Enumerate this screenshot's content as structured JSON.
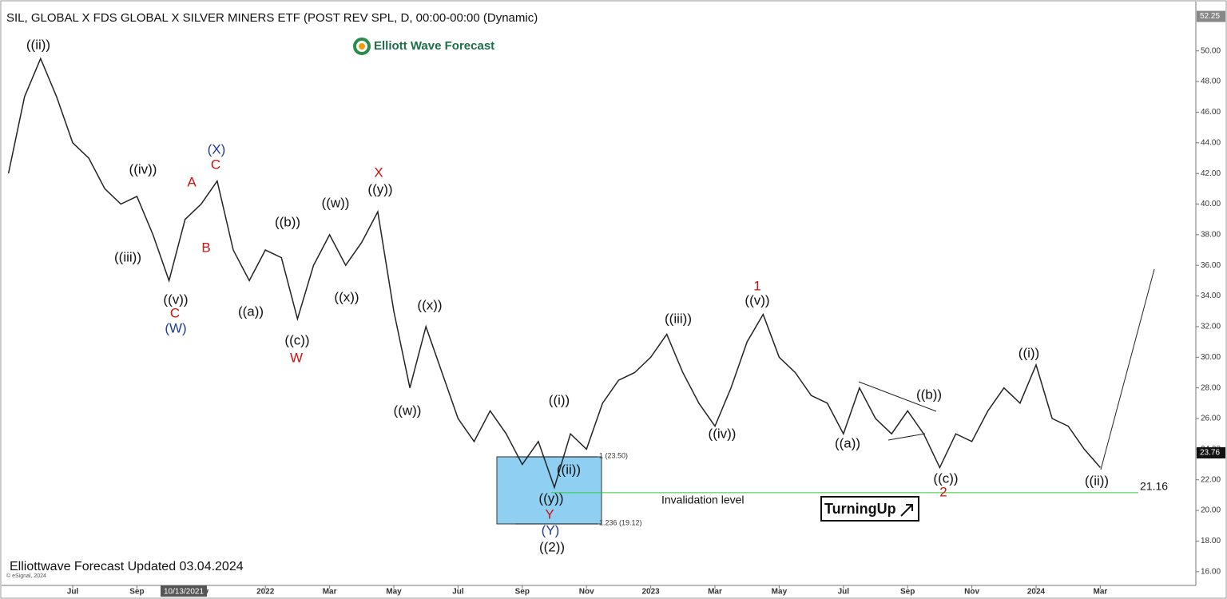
{
  "chart_data": {
    "type": "line",
    "title": "SIL, GLOBAL X FDS GLOBAL X SILVER MINERS ETF (POST REV SPL, D, 00:00-00:00 (Dynamic)",
    "logo": "Elliott Wave Forecast",
    "footer": "Elliottwave Forecast Updated 03.04.2024",
    "copyright": "© eSignal, 2024",
    "cursor_date": "10/13/2021",
    "badge": "TurningUp",
    "categories": [
      null,
      null,
      null,
      null,
      "Jul",
      null,
      null,
      null,
      "Sep",
      null,
      null,
      null,
      "Nov",
      null,
      null,
      null,
      "2022",
      null,
      null,
      null,
      "Mar",
      null,
      null,
      null,
      "May",
      null,
      null,
      null,
      "Jul",
      null,
      null,
      null,
      "Sep",
      null,
      null,
      null,
      "Nov",
      null,
      null,
      null,
      "2023",
      null,
      null,
      null,
      "Mar",
      null,
      null,
      null,
      "May",
      null,
      null,
      null,
      "Jul",
      null,
      null,
      null,
      "Sep",
      null,
      null,
      null,
      "Nov",
      null,
      null,
      null,
      "2024",
      null,
      null,
      null,
      "Mar"
    ],
    "values": [
      42,
      47,
      49.5,
      47,
      44,
      43,
      41,
      40,
      40.5,
      38,
      35,
      39,
      40,
      41.5,
      37,
      35,
      37,
      36.5,
      32.5,
      36,
      38,
      36,
      37.5,
      39.5,
      33,
      28,
      32,
      29,
      26,
      24.5,
      26.5,
      25,
      23,
      24.5,
      21.5,
      25,
      24,
      27,
      28.5,
      29,
      30,
      31.5,
      29,
      27,
      25.5,
      28,
      31,
      32.8,
      30,
      29,
      27.5,
      27,
      25,
      28,
      26,
      25,
      26.5,
      25,
      22.8,
      25,
      24.5,
      26.5,
      28,
      27,
      29.5,
      26,
      25.5,
      24,
      22.8
    ],
    "color": "#222222",
    "ylim": [
      15,
      52.8
    ],
    "yticks": [
      {
        "value": 16,
        "label": "16.00"
      },
      {
        "value": 18,
        "label": "18.00"
      },
      {
        "value": 20,
        "label": "20.00"
      },
      {
        "value": 22,
        "label": "22.00"
      },
      {
        "value": 24,
        "label": "24.00"
      },
      {
        "value": 26,
        "label": "26.00"
      },
      {
        "value": 28,
        "label": "28.00"
      },
      {
        "value": 30,
        "label": "30.00"
      },
      {
        "value": 32,
        "label": "32.00"
      },
      {
        "value": 34,
        "label": "34.00"
      },
      {
        "value": 36,
        "label": "36.00"
      },
      {
        "value": 38,
        "label": "38.00"
      },
      {
        "value": 40,
        "label": "40.00"
      },
      {
        "value": 42,
        "label": "42.00"
      },
      {
        "value": 44,
        "label": "44.00"
      },
      {
        "value": 46,
        "label": "46.00"
      },
      {
        "value": 48,
        "label": "48.00"
      },
      {
        "value": 50,
        "label": "50.00"
      }
    ],
    "grid": false,
    "axis_top": 52.25,
    "current_price": 23.76,
    "fib_levels": [
      {
        "value": 23.5,
        "label": "1 (23.50)"
      },
      {
        "value": 19.12,
        "label": "1.236 (19.12)"
      }
    ],
    "fib_color": "#8fd0f2",
    "invalidation": {
      "level": 21.16,
      "text": "Invalidation level",
      "color": "#33cc33"
    },
    "wave_labels": [
      {
        "text": "((ii))",
        "color": "#111111"
      },
      {
        "text": "((iv))",
        "color": "#111111"
      },
      {
        "text": "((iii))",
        "color": "#111111"
      },
      {
        "text": "((v))",
        "color": "#111111"
      },
      {
        "text": "C",
        "color": "#cc1111"
      },
      {
        "text": "(W)",
        "color": "#1f3d99"
      },
      {
        "text": "A",
        "color": "#cc1111"
      },
      {
        "text": "B",
        "color": "#cc1111"
      },
      {
        "text": "(X)",
        "color": "#1f3d99"
      },
      {
        "text": "C",
        "color": "#cc1111"
      },
      {
        "text": "((a))",
        "color": "#111111"
      },
      {
        "text": "((b))",
        "color": "#111111"
      },
      {
        "text": "((c))",
        "color": "#111111"
      },
      {
        "text": "W",
        "color": "#cc1111"
      },
      {
        "text": "((w))",
        "color": "#111111"
      },
      {
        "text": "((x))",
        "color": "#111111"
      },
      {
        "text": "X",
        "color": "#cc1111"
      },
      {
        "text": "((y))",
        "color": "#111111"
      },
      {
        "text": "((x))",
        "color": "#111111"
      },
      {
        "text": "((w))",
        "color": "#111111"
      },
      {
        "text": "((i))",
        "color": "#111111"
      },
      {
        "text": "((ii))",
        "color": "#111111"
      },
      {
        "text": "((y))",
        "color": "#111111"
      },
      {
        "text": "Y",
        "color": "#cc1111"
      },
      {
        "text": "(Y)",
        "color": "#1f3d99"
      },
      {
        "text": "((2))",
        "color": "#111111"
      },
      {
        "text": "((iii))",
        "color": "#111111"
      },
      {
        "text": "((iv))",
        "color": "#111111"
      },
      {
        "text": "1",
        "color": "#cc1111"
      },
      {
        "text": "((v))",
        "color": "#111111"
      },
      {
        "text": "((a))",
        "color": "#111111"
      },
      {
        "text": "((b))",
        "color": "#111111"
      },
      {
        "text": "((c))",
        "color": "#111111"
      },
      {
        "text": "2",
        "color": "#cc1111"
      },
      {
        "text": "((i))",
        "color": "#111111"
      },
      {
        "text": "((ii))",
        "color": "#111111"
      }
    ]
  }
}
